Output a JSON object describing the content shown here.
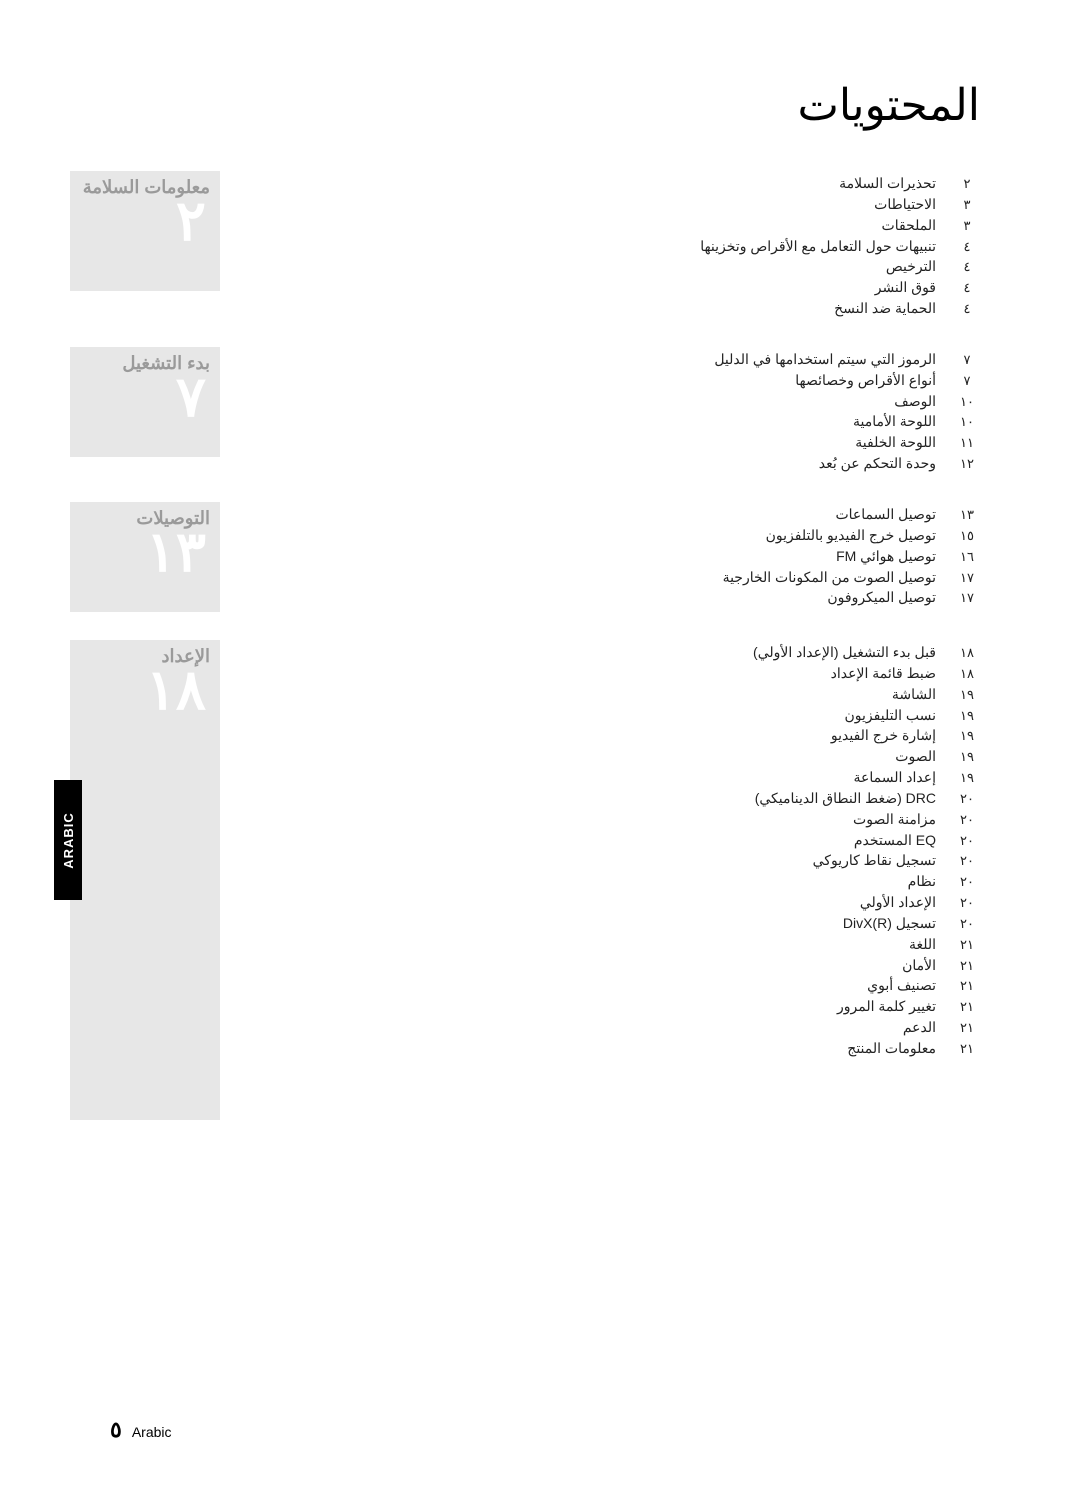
{
  "pageTitle": "المحتويات",
  "sideTab": "ARABIC",
  "footer": {
    "pageNumber": "٥",
    "label": "Arabic"
  },
  "sections": [
    {
      "title": "معلومات السلامة",
      "bigNumber": "٢",
      "blockHeight": 120,
      "entries": [
        {
          "page": "٢",
          "label": "تحذيرات السلامة"
        },
        {
          "page": "٣",
          "label": "الاحتياطات"
        },
        {
          "page": "٣",
          "label": "الملحقات"
        },
        {
          "page": "٤",
          "label": "تنبيهات حول التعامل مع الأقراص وتخزينها"
        },
        {
          "page": "٤",
          "label": "الترخيص"
        },
        {
          "page": "٤",
          "label": "قوق النشر"
        },
        {
          "page": "٤",
          "label": "الحماية ضد النسخ"
        }
      ]
    },
    {
      "title": "بدء التشغيل",
      "bigNumber": "٧",
      "blockHeight": 110,
      "entries": [
        {
          "page": "٧",
          "label": "الرموز التي سيتم استخدامها في الدليل"
        },
        {
          "page": "٧",
          "label": "أنواع الأقراص وخصائصها"
        },
        {
          "page": "١٠",
          "label": "الوصف"
        },
        {
          "page": "١٠",
          "label": "اللوحة الأمامية"
        },
        {
          "page": "١١",
          "label": "اللوحة الخلفية"
        },
        {
          "page": "١٢",
          "label": "وحدة التحكم عن بُعد"
        }
      ]
    },
    {
      "title": "التوصيلات",
      "bigNumber": "١٣",
      "blockHeight": 110,
      "entries": [
        {
          "page": "١٣",
          "label": "توصيل السماعات"
        },
        {
          "page": "١٥",
          "label": "توصيل خرج الفيديو بالتلفزيون"
        },
        {
          "page": "١٦",
          "label": "توصيل هوائي FM"
        },
        {
          "page": "١٧",
          "label": "توصيل الصوت من المكونات الخارجية"
        },
        {
          "page": "١٧",
          "label": "توصيل الميكروفون"
        }
      ]
    },
    {
      "title": "الإعداد",
      "bigNumber": "١٨",
      "blockHeight": 480,
      "entries": [
        {
          "page": "١٨",
          "label": "قبل بدء التشغيل (الإعداد الأولي)"
        },
        {
          "page": "١٨",
          "label": "ضبط قائمة الإعداد"
        },
        {
          "page": "١٩",
          "label": "الشاشة"
        },
        {
          "page": "١٩",
          "label": "نسب التليفزيون"
        },
        {
          "page": "١٩",
          "label": "إشارة خرج الفيديو"
        },
        {
          "page": "١٩",
          "label": "الصوت"
        },
        {
          "page": "١٩",
          "label": "إعداد السماعة"
        },
        {
          "page": "٢٠",
          "label": "DRC (ضغط النطاق الديناميكي)"
        },
        {
          "page": "٢٠",
          "label": "مزامنة الصوت"
        },
        {
          "page": "٢٠",
          "label": "EQ المستخدم"
        },
        {
          "page": "٢٠",
          "label": "تسجيل نقاط كاريوكي"
        },
        {
          "page": "٢٠",
          "label": "نظام"
        },
        {
          "page": "٢٠",
          "label": "الإعداد الأولي"
        },
        {
          "page": "٢٠",
          "label": "تسجيل DivX(R)"
        },
        {
          "page": "٢١",
          "label": "اللغة"
        },
        {
          "page": "٢١",
          "label": "الأمان"
        },
        {
          "page": "٢١",
          "label": "تصنيف أبوي"
        },
        {
          "page": "٢١",
          "label": "تغيير كلمة المرور"
        },
        {
          "page": "٢١",
          "label": "الدعم"
        },
        {
          "page": "٢١",
          "label": "معلومات المنتج"
        }
      ]
    }
  ]
}
